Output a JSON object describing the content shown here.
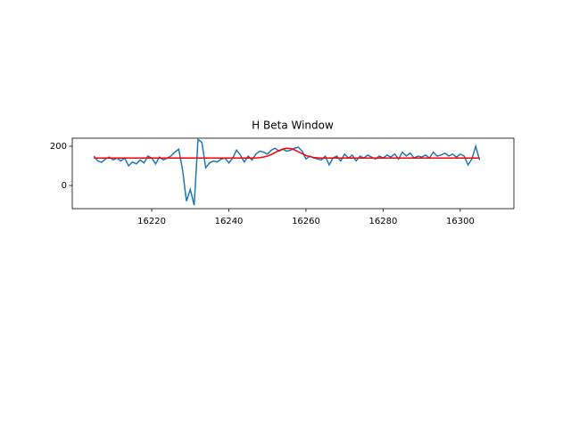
{
  "chart_data": {
    "type": "line",
    "title": "H Beta Window",
    "x": [
      16205,
      16206,
      16207,
      16208,
      16209,
      16210,
      16211,
      16212,
      16213,
      16214,
      16215,
      16216,
      16217,
      16218,
      16219,
      16220,
      16221,
      16222,
      16223,
      16224,
      16225,
      16226,
      16227,
      16228,
      16229,
      16230,
      16231,
      16232,
      16233,
      16234,
      16235,
      16236,
      16237,
      16238,
      16239,
      16240,
      16241,
      16242,
      16243,
      16244,
      16245,
      16246,
      16247,
      16248,
      16249,
      16250,
      16251,
      16252,
      16253,
      16254,
      16255,
      16256,
      16257,
      16258,
      16259,
      16260,
      16261,
      16262,
      16263,
      16264,
      16265,
      16266,
      16267,
      16268,
      16269,
      16270,
      16271,
      16272,
      16273,
      16274,
      16275,
      16276,
      16277,
      16278,
      16279,
      16280,
      16281,
      16282,
      16283,
      16284,
      16285,
      16286,
      16287,
      16288,
      16289,
      16290,
      16291,
      16292,
      16293,
      16294,
      16295,
      16296,
      16297,
      16298,
      16299,
      16300,
      16301,
      16302,
      16303,
      16304,
      16305
    ],
    "series": [
      {
        "color": "#1f77b4",
        "values": [
          150,
          125,
          118,
          135,
          145,
          130,
          140,
          125,
          140,
          100,
          120,
          110,
          130,
          115,
          150,
          140,
          110,
          145,
          130,
          140,
          150,
          170,
          185,
          80,
          -80,
          -20,
          -100,
          235,
          220,
          90,
          115,
          125,
          120,
          135,
          140,
          115,
          140,
          180,
          155,
          120,
          150,
          130,
          160,
          175,
          170,
          160,
          180,
          190,
          175,
          185,
          175,
          180,
          190,
          195,
          175,
          135,
          150,
          140,
          135,
          130,
          150,
          105,
          140,
          150,
          125,
          160,
          140,
          155,
          125,
          150,
          140,
          155,
          145,
          135,
          150,
          140,
          155,
          145,
          160,
          135,
          170,
          150,
          165,
          140,
          150,
          145,
          155,
          140,
          170,
          150,
          155,
          165,
          150,
          160,
          145,
          160,
          150,
          105,
          135,
          200,
          130
        ]
      },
      {
        "color": "#ff0000",
        "values": [
          140,
          140,
          140,
          140,
          140,
          140,
          140,
          140,
          140,
          140,
          140,
          140,
          140,
          140,
          140,
          140,
          140,
          140,
          140,
          140,
          140,
          140,
          140,
          140,
          140,
          140,
          140,
          140,
          140,
          140,
          140,
          140,
          140,
          140,
          140,
          140,
          140,
          140,
          140,
          140,
          140,
          140,
          140,
          142,
          145,
          150,
          158,
          168,
          178,
          186,
          190,
          188,
          182,
          172,
          162,
          153,
          147,
          143,
          141,
          140,
          140,
          140,
          140,
          140,
          140,
          140,
          140,
          140,
          140,
          140,
          140,
          140,
          140,
          140,
          140,
          140,
          140,
          140,
          140,
          140,
          140,
          140,
          140,
          140,
          140,
          140,
          140,
          140,
          140,
          140,
          140,
          140,
          140,
          140,
          140,
          140,
          140,
          140,
          140,
          140,
          140
        ]
      }
    ],
    "xlim": [
      16199.4,
      16313.9
    ],
    "ylim": [
      -118,
      241
    ],
    "xticks": [
      16220,
      16240,
      16260,
      16280,
      16300
    ],
    "yticks": [
      0,
      200
    ]
  }
}
